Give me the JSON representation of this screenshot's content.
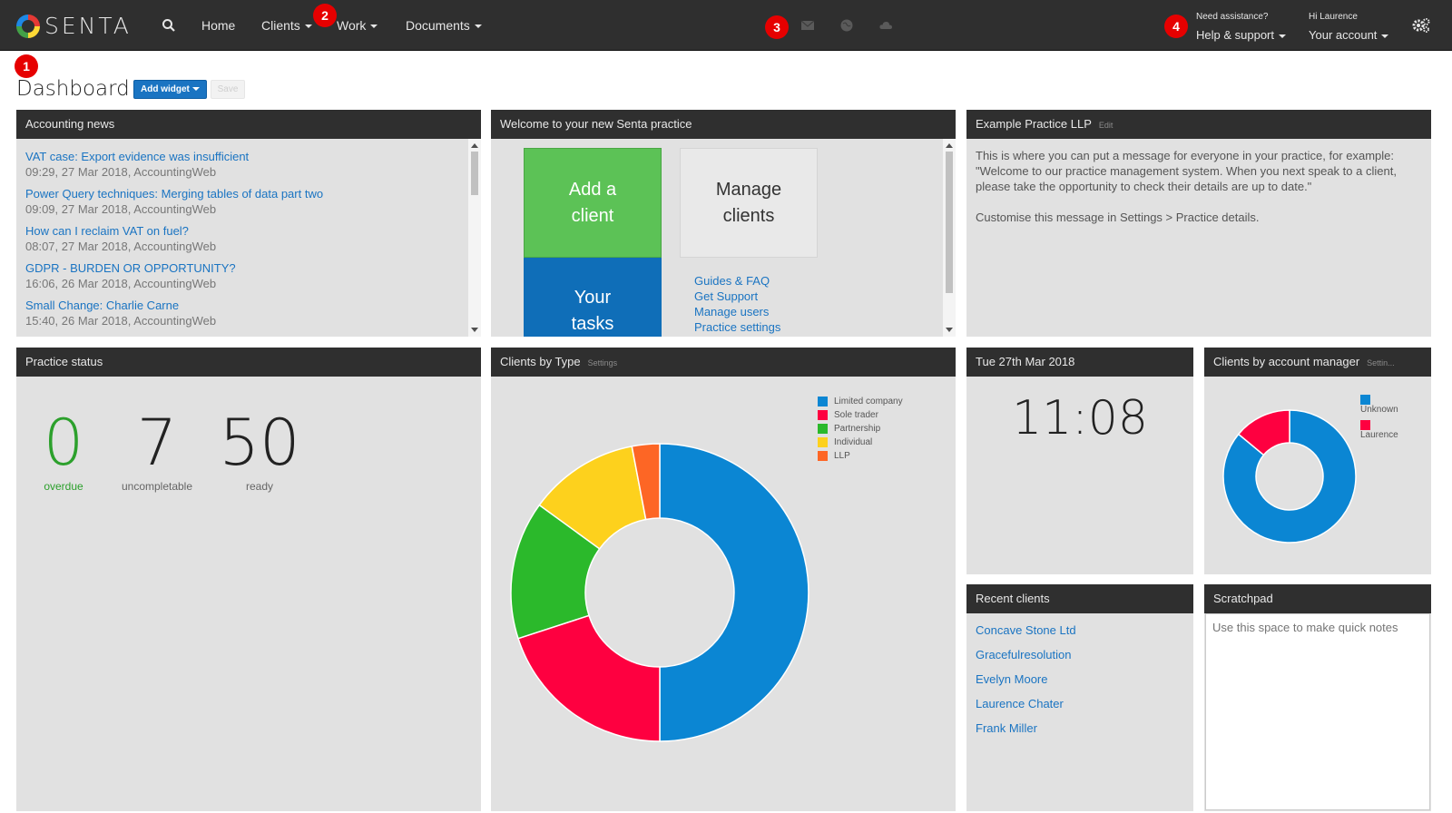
{
  "nav": {
    "brand": "SENTA",
    "home": "Home",
    "clients": "Clients",
    "work": "Work",
    "documents": "Documents",
    "help_small": "Need assistance?",
    "help_big": "Help & support",
    "account_small": "Hi Laurence",
    "account_big": "Your account"
  },
  "badges": [
    "1",
    "2",
    "3",
    "4"
  ],
  "header": {
    "title": "Dashboard",
    "add_widget": "Add widget",
    "save": "Save"
  },
  "news": {
    "title": "Accounting news",
    "items": [
      {
        "title": "VAT case: Export evidence was insufficient",
        "meta": "09:29, 27 Mar 2018, AccountingWeb"
      },
      {
        "title": "Power Query techniques: Merging tables of data part two",
        "meta": "09:09, 27 Mar 2018, AccountingWeb"
      },
      {
        "title": "How can I reclaim VAT on fuel?",
        "meta": "08:07, 27 Mar 2018, AccountingWeb"
      },
      {
        "title": "GDPR - BURDEN OR OPPORTUNITY?",
        "meta": "16:06, 26 Mar 2018, AccountingWeb"
      },
      {
        "title": "Small Change: Charlie Carne",
        "meta": "15:40, 26 Mar 2018, AccountingWeb"
      }
    ]
  },
  "welcome": {
    "title": "Welcome to your new Senta practice",
    "add_client_l1": "Add a",
    "add_client_l2": "client",
    "manage_l1": "Manage",
    "manage_l2": "clients",
    "tasks_l1": "Your",
    "tasks_l2": "tasks",
    "links": [
      "Guides & FAQ",
      "Get Support",
      "Manage users",
      "Practice settings"
    ]
  },
  "practice_msg": {
    "title": "Example Practice LLP",
    "edit": "Edit",
    "line1": "This is where you can put a message for everyone in your practice, for example: \"Welcome to our practice management system.  When you next speak to a client, please take the opportunity to check their details are up to date.\"",
    "line2": "Customise this message in Settings > Practice details."
  },
  "practice_status": {
    "title": "Practice status",
    "stats": [
      {
        "value": "0",
        "label": "overdue",
        "color": "#2ca02c"
      },
      {
        "value": "7",
        "label": "uncompletable",
        "color": "#222222"
      },
      {
        "value": "50",
        "label": "ready",
        "color": "#222222"
      }
    ]
  },
  "clients_by_type": {
    "title": "Clients by Type",
    "settings": "Settings"
  },
  "date_widget": {
    "date": "Tue 27th Mar 2018",
    "time": "11:08"
  },
  "account_manager": {
    "title": "Clients by account manager",
    "settings": "Settin..."
  },
  "recent_clients": {
    "title": "Recent clients",
    "items": [
      "Concave Stone Ltd",
      "Gracefulresolution",
      "Evelyn Moore",
      "Laurence Chater",
      "Frank Miller"
    ]
  },
  "scratchpad": {
    "title": "Scratchpad",
    "placeholder": "Use this space to make quick notes"
  },
  "chart_data": [
    {
      "type": "pie",
      "categories": [
        "Limited company",
        "Sole trader",
        "Partnership",
        "Individual",
        "LLP"
      ],
      "values": [
        50,
        20,
        15,
        12,
        3
      ],
      "colors": [
        "#0b86d3",
        "#fe0040",
        "#2bb92b",
        "#fdd11d",
        "#fd6625"
      ],
      "donut": true,
      "legend": "top-right"
    },
    {
      "type": "pie",
      "categories": [
        "Unknown",
        "Laurence"
      ],
      "values": [
        86,
        14
      ],
      "colors": [
        "#0b86d3",
        "#fe0040"
      ],
      "donut": true,
      "legend": "top-right"
    }
  ]
}
